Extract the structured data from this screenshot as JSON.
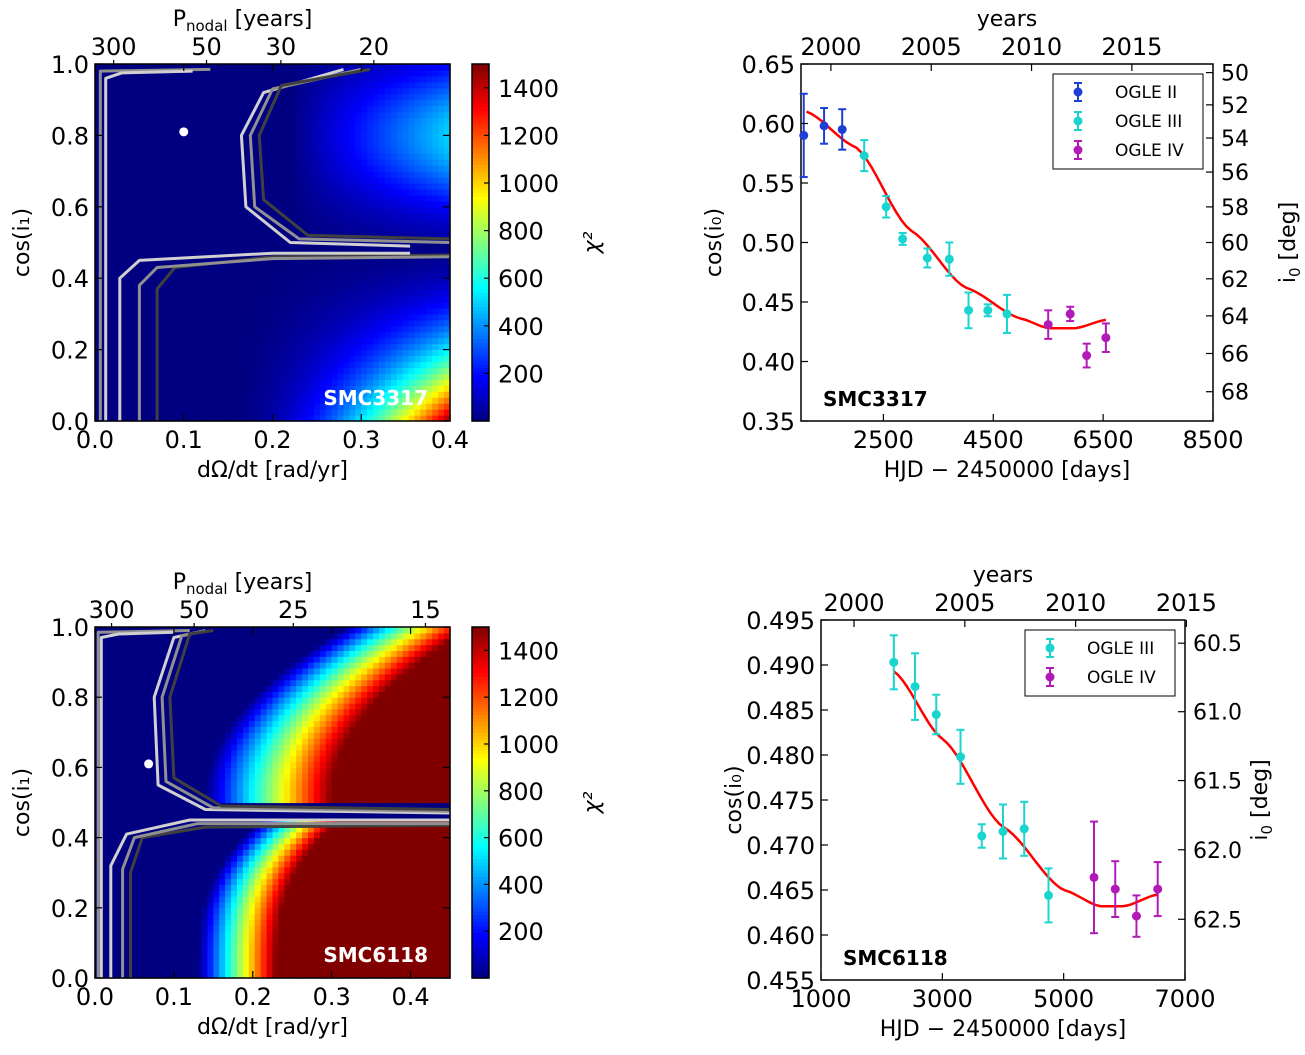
{
  "colors": {
    "ogle2": "#1f3fd4",
    "ogle3": "#19d4cf",
    "ogle4": "#b21ab8",
    "fit": "#ff0000",
    "contour_light": "#d0d0d0",
    "contour_mid": "#909090",
    "contour_dark": "#404040",
    "map_background": "#00008f"
  },
  "chart_data": [
    {
      "id": "p1",
      "type": "heatmap",
      "xlabel": "dΩ/dt [rad/yr]",
      "ylabel": "cos(i₁)",
      "top_axis_label": "P",
      "top_axis_label_sub": "nodal",
      "top_axis_label_suffix": "[years]",
      "xlim": [
        0,
        0.4
      ],
      "ylim": [
        0,
        1
      ],
      "x_ticks": [
        0,
        0.1,
        0.2,
        0.3,
        0.4
      ],
      "x_tick_labels": [
        "0.0",
        "0.1",
        "0.2",
        "0.3",
        "0.4"
      ],
      "y_ticks": [
        0,
        0.2,
        0.4,
        0.6,
        0.8,
        1.0
      ],
      "y_tick_labels": [
        "0.0",
        "0.2",
        "0.4",
        "0.6",
        "0.8",
        "1.0"
      ],
      "top_ticks": [
        300,
        50,
        30,
        20
      ],
      "top_tick_labels": [
        "300",
        "50",
        "30",
        "20"
      ],
      "colorbar": {
        "label": "χ²",
        "range": [
          0,
          1500
        ],
        "ticks": [
          200,
          400,
          600,
          800,
          1000,
          1200,
          1400
        ],
        "tick_labels": [
          "200",
          "400",
          "600",
          "800",
          "1000",
          "1200",
          "1400"
        ]
      },
      "best_fit": {
        "x": 0.1,
        "y": 0.81
      },
      "star_label": "SMC3317",
      "model": "p1"
    },
    {
      "id": "p2",
      "type": "scatter",
      "xlabel": "HJD − 2450000 [days]",
      "ylabel": "cos(i₀)",
      "top_axis_label": "years",
      "right_axis_label": "i",
      "right_axis_label_sub": "0",
      "right_axis_label_suffix": "[deg]",
      "xlim": [
        1000,
        8500
      ],
      "ylim": [
        0.35,
        0.65
      ],
      "x_ticks": [
        2500,
        4500,
        6500,
        8500
      ],
      "x_tick_labels": [
        "2500",
        "4500",
        "6500",
        "8500"
      ],
      "y_ticks": [
        0.35,
        0.4,
        0.45,
        0.5,
        0.55,
        0.6,
        0.65
      ],
      "y_tick_labels": [
        "0.35",
        "0.40",
        "0.45",
        "0.50",
        "0.55",
        "0.60",
        "0.65"
      ],
      "top_ticks": [
        2000,
        2005,
        2010,
        2015
      ],
      "top_tick_labels": [
        "2000",
        "2005",
        "2010",
        "2015"
      ],
      "right_ticks": [
        50,
        52,
        54,
        56,
        58,
        60,
        62,
        64,
        66,
        68
      ],
      "right_tick_labels": [
        "50",
        "52",
        "54",
        "56",
        "58",
        "60",
        "62",
        "64",
        "66",
        "68"
      ],
      "star_label": "SMC3317",
      "series": [
        {
          "name": "OGLE II",
          "color_key": "ogle2",
          "points": [
            [
              1050,
              0.59,
              0.035
            ],
            [
              1420,
              0.598,
              0.015
            ],
            [
              1750,
              0.595,
              0.017
            ]
          ]
        },
        {
          "name": "OGLE III",
          "color_key": "ogle3",
          "points": [
            [
              2150,
              0.573,
              0.013
            ],
            [
              2550,
              0.53,
              0.009
            ],
            [
              2850,
              0.503,
              0.005
            ],
            [
              3300,
              0.487,
              0.008
            ],
            [
              3700,
              0.486,
              0.014
            ],
            [
              4050,
              0.443,
              0.015
            ],
            [
              4400,
              0.443,
              0.005
            ],
            [
              4750,
              0.44,
              0.016
            ]
          ]
        },
        {
          "name": "OGLE IV",
          "color_key": "ogle4",
          "points": [
            [
              5500,
              0.431,
              0.012
            ],
            [
              5900,
              0.44,
              0.006
            ],
            [
              6200,
              0.405,
              0.01
            ],
            [
              6550,
              0.42,
              0.012
            ]
          ]
        }
      ],
      "fit_curve": {
        "name": "",
        "x_range": [
          1100,
          6550
        ],
        "samples": [
          [
            1100,
            0.61
          ],
          [
            2000,
            0.58
          ],
          [
            3000,
            0.51
          ],
          [
            4000,
            0.462
          ],
          [
            5000,
            0.436
          ],
          [
            5500,
            0.428
          ],
          [
            6000,
            0.428
          ],
          [
            6550,
            0.435
          ]
        ]
      }
    },
    {
      "id": "p3",
      "type": "heatmap",
      "xlabel": "dΩ/dt [rad/yr]",
      "ylabel": "cos(i₁)",
      "top_axis_label": "P",
      "top_axis_label_sub": "nodal",
      "top_axis_label_suffix": "[years]",
      "xlim": [
        0,
        0.45
      ],
      "ylim": [
        0,
        1
      ],
      "x_ticks": [
        0,
        0.1,
        0.2,
        0.3,
        0.4
      ],
      "x_tick_labels": [
        "0.0",
        "0.1",
        "0.2",
        "0.3",
        "0.4"
      ],
      "y_ticks": [
        0,
        0.2,
        0.4,
        0.6,
        0.8,
        1.0
      ],
      "y_tick_labels": [
        "0.0",
        "0.2",
        "0.4",
        "0.6",
        "0.8",
        "1.0"
      ],
      "top_ticks": [
        300,
        50,
        25,
        15
      ],
      "top_tick_labels": [
        "300",
        "50",
        "25",
        "15"
      ],
      "colorbar": {
        "label": "χ²",
        "range": [
          0,
          1500
        ],
        "ticks": [
          200,
          400,
          600,
          800,
          1000,
          1200,
          1400
        ],
        "tick_labels": [
          "200",
          "400",
          "600",
          "800",
          "1000",
          "1200",
          "1400"
        ]
      },
      "best_fit": {
        "x": 0.068,
        "y": 0.61
      },
      "star_label": "SMC6118",
      "model": "p3"
    },
    {
      "id": "p4",
      "type": "scatter",
      "xlabel": "HJD − 2450000 [days]",
      "ylabel": "cos(i₀)",
      "top_axis_label": "years",
      "right_axis_label": "i",
      "right_axis_label_sub": "0",
      "right_axis_label_suffix": "[deg]",
      "xlim": [
        1000,
        7000
      ],
      "ylim": [
        0.455,
        0.495
      ],
      "x_ticks": [
        1000,
        3000,
        5000,
        7000
      ],
      "x_tick_labels": [
        "1000",
        "3000",
        "5000",
        "7000"
      ],
      "y_ticks": [
        0.455,
        0.46,
        0.465,
        0.47,
        0.475,
        0.48,
        0.485,
        0.49,
        0.495
      ],
      "y_tick_labels": [
        "0.455",
        "0.460",
        "0.465",
        "0.470",
        "0.475",
        "0.480",
        "0.485",
        "0.490",
        "0.495"
      ],
      "top_ticks": [
        2000,
        2005,
        2010,
        2015
      ],
      "top_tick_labels": [
        "2000",
        "2005",
        "2010",
        "2015"
      ],
      "right_ticks": [
        60.5,
        61.0,
        61.5,
        62.0,
        62.5
      ],
      "right_tick_labels": [
        "60.5",
        "61.0",
        "61.5",
        "62.0",
        "62.5"
      ],
      "star_label": "SMC6118",
      "series": [
        {
          "name": "OGLE III",
          "color_key": "ogle3",
          "points": [
            [
              2200,
              0.4903,
              0.003
            ],
            [
              2550,
              0.4876,
              0.0037
            ],
            [
              2900,
              0.4845,
              0.0022
            ],
            [
              3300,
              0.4798,
              0.003
            ],
            [
              3650,
              0.471,
              0.0013
            ],
            [
              4000,
              0.4715,
              0.003
            ],
            [
              4350,
              0.4718,
              0.003
            ],
            [
              4750,
              0.4644,
              0.003
            ]
          ]
        },
        {
          "name": "OGLE IV",
          "color_key": "ogle4",
          "points": [
            [
              5500,
              0.4664,
              0.0062
            ],
            [
              5850,
              0.4651,
              0.0031
            ],
            [
              6200,
              0.4621,
              0.0023
            ],
            [
              6550,
              0.4651,
              0.003
            ]
          ]
        }
      ],
      "fit_curve": {
        "name": "",
        "x_range": [
          2200,
          6550
        ],
        "samples": [
          [
            2200,
            0.4893
          ],
          [
            3000,
            0.4818
          ],
          [
            4000,
            0.472
          ],
          [
            5000,
            0.465
          ],
          [
            5600,
            0.4632
          ],
          [
            6000,
            0.4632
          ],
          [
            6550,
            0.4645
          ]
        ]
      }
    }
  ]
}
